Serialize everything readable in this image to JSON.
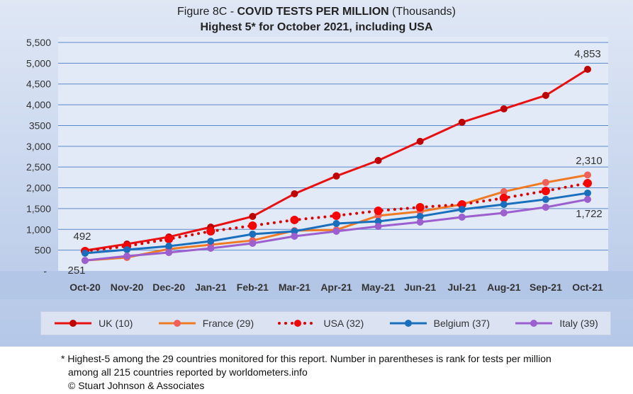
{
  "chart_data": {
    "type": "line",
    "title": "Figure 8C - COVID TESTS PER MILLION (Thousands)",
    "title_parts": {
      "pre": "Figure 8C - ",
      "bold": "COVID TESTS PER MILLION",
      "post": " (Thousands)"
    },
    "subtitle": "Highest 5* for October 2021, including USA",
    "categories": [
      "Oct-20",
      "Nov-20",
      "Dec-20",
      "Jan-21",
      "Feb-21",
      "Mar-21",
      "Apr-21",
      "May-21",
      "Jun-21",
      "Jul-21",
      "Aug-21",
      "Sep-21",
      "Oct-21"
    ],
    "ylim": [
      0,
      5500
    ],
    "yticks": [
      "-",
      "500",
      "1,000",
      "1,500",
      "2,000",
      "2,500",
      "3,000",
      "3500",
      "4,000",
      "4,500",
      "5,000",
      "5,500"
    ],
    "grid": true,
    "legend_position": "bottom",
    "series": [
      {
        "name": "UK (10)",
        "color": "#e81010",
        "marker": "#c00000",
        "dotted": false,
        "values": [
          492,
          647,
          818,
          1056,
          1312,
          1857,
          2283,
          2658,
          3118,
          3578,
          3901,
          4225,
          4853
        ]
      },
      {
        "name": "France (29)",
        "color": "#f07a24",
        "marker": "#f0605a",
        "dotted": false,
        "values": [
          251,
          324,
          528,
          630,
          733,
          971,
          988,
          1329,
          1431,
          1601,
          1908,
          2129,
          2310
        ]
      },
      {
        "name": "USA (32)",
        "color": "#e00000",
        "marker": "#ff0000",
        "dotted": true,
        "values": [
          477,
          596,
          767,
          954,
          1090,
          1227,
          1329,
          1448,
          1533,
          1601,
          1755,
          1925,
          2112
        ]
      },
      {
        "name": "Belgium (37)",
        "color": "#1a6fbd",
        "marker": "#1a6fbd",
        "dotted": false,
        "values": [
          426,
          511,
          596,
          715,
          886,
          954,
          1141,
          1192,
          1312,
          1482,
          1601,
          1721,
          1874
        ]
      },
      {
        "name": "Italy (39)",
        "color": "#9b5fcf",
        "marker": "#9b5fcf",
        "dotted": false,
        "values": [
          251,
          358,
          443,
          545,
          664,
          835,
          954,
          1073,
          1175,
          1295,
          1397,
          1533,
          1722
        ]
      }
    ],
    "annotations": [
      "492",
      "251",
      "4,853",
      "2,310",
      "1,722"
    ]
  },
  "footnote": [
    "* Highest-5 among the 29 countries monitored for this report. Number in parentheses is rank for tests per million",
    "among all 215 countries reported by worldometers.info",
    "© Stuart Johnson & Associates"
  ]
}
